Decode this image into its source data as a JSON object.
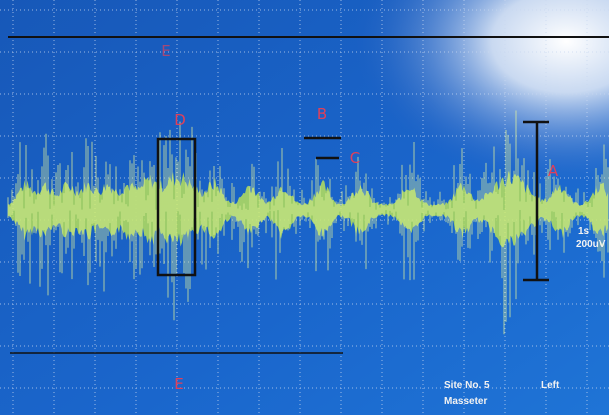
{
  "labels": {
    "top_e": "E",
    "d": "D",
    "b": "B",
    "c": "C",
    "a": "A",
    "bottom_e": "E"
  },
  "screen": {
    "time_scale": "1s",
    "amplitude_scale": "200uV",
    "site": "Site No. 5",
    "muscle": "Masseter",
    "side": "Left"
  }
}
